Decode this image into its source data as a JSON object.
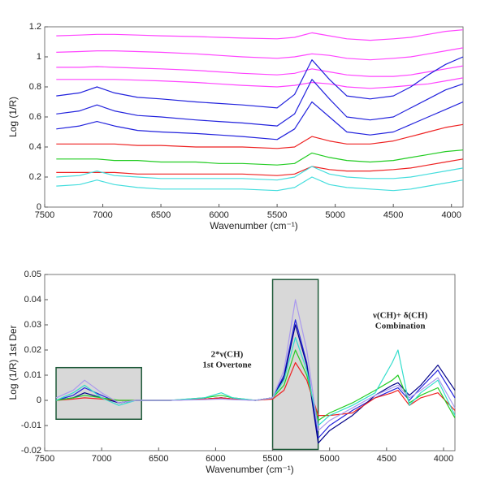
{
  "chart_data": [
    {
      "type": "line",
      "xlabel": "Wavenumber (cm⁻¹)",
      "ylabel": "Log (1/R)",
      "xlim": [
        7500,
        3900
      ],
      "xticks": [
        7500,
        7000,
        6500,
        6000,
        5500,
        5000,
        4500,
        4000
      ],
      "ylim": [
        0,
        1.2
      ],
      "yticks": [
        0,
        0.2,
        0.4,
        0.6,
        0.8,
        1,
        1.2
      ],
      "x": [
        7400,
        7200,
        7050,
        6900,
        6700,
        6500,
        6200,
        6000,
        5800,
        5500,
        5350,
        5200,
        5050,
        4900,
        4700,
        4500,
        4350,
        4200,
        4050,
        3900
      ],
      "series": [
        {
          "color": "#ff44ff",
          "values": [
            1.14,
            1.145,
            1.15,
            1.15,
            1.145,
            1.14,
            1.135,
            1.13,
            1.125,
            1.12,
            1.13,
            1.16,
            1.14,
            1.12,
            1.11,
            1.12,
            1.13,
            1.15,
            1.17,
            1.18
          ]
        },
        {
          "color": "#ff44ff",
          "values": [
            1.03,
            1.035,
            1.04,
            1.04,
            1.035,
            1.03,
            1.02,
            1.01,
            1.0,
            0.99,
            1.0,
            1.02,
            1.01,
            0.99,
            0.98,
            0.99,
            1.0,
            1.02,
            1.04,
            1.06
          ]
        },
        {
          "color": "#ff44ff",
          "values": [
            0.93,
            0.93,
            0.935,
            0.93,
            0.925,
            0.92,
            0.91,
            0.9,
            0.89,
            0.88,
            0.89,
            0.92,
            0.9,
            0.88,
            0.87,
            0.87,
            0.88,
            0.9,
            0.92,
            0.94
          ]
        },
        {
          "color": "#ff44ff",
          "values": [
            0.85,
            0.85,
            0.85,
            0.85,
            0.845,
            0.84,
            0.83,
            0.82,
            0.81,
            0.8,
            0.81,
            0.83,
            0.82,
            0.8,
            0.79,
            0.8,
            0.81,
            0.82,
            0.84,
            0.86
          ]
        },
        {
          "color": "#2222dd",
          "values": [
            0.74,
            0.76,
            0.8,
            0.76,
            0.73,
            0.72,
            0.7,
            0.69,
            0.68,
            0.66,
            0.75,
            0.98,
            0.85,
            0.74,
            0.72,
            0.74,
            0.8,
            0.88,
            0.95,
            1.0
          ]
        },
        {
          "color": "#2222dd",
          "values": [
            0.62,
            0.64,
            0.68,
            0.64,
            0.61,
            0.6,
            0.58,
            0.57,
            0.56,
            0.54,
            0.62,
            0.85,
            0.72,
            0.6,
            0.58,
            0.6,
            0.66,
            0.72,
            0.78,
            0.82
          ]
        },
        {
          "color": "#2222dd",
          "values": [
            0.52,
            0.54,
            0.57,
            0.54,
            0.51,
            0.5,
            0.49,
            0.48,
            0.47,
            0.45,
            0.52,
            0.7,
            0.6,
            0.5,
            0.48,
            0.5,
            0.55,
            0.6,
            0.65,
            0.7
          ]
        },
        {
          "color": "#ee2222",
          "values": [
            0.42,
            0.42,
            0.42,
            0.42,
            0.41,
            0.41,
            0.4,
            0.4,
            0.4,
            0.39,
            0.4,
            0.47,
            0.44,
            0.42,
            0.42,
            0.44,
            0.47,
            0.5,
            0.53,
            0.55
          ]
        },
        {
          "color": "#22cc22",
          "values": [
            0.32,
            0.32,
            0.32,
            0.31,
            0.31,
            0.3,
            0.3,
            0.29,
            0.29,
            0.28,
            0.29,
            0.36,
            0.33,
            0.31,
            0.3,
            0.31,
            0.33,
            0.35,
            0.37,
            0.38
          ]
        },
        {
          "color": "#ee2222",
          "values": [
            0.23,
            0.23,
            0.23,
            0.23,
            0.22,
            0.22,
            0.22,
            0.22,
            0.22,
            0.21,
            0.22,
            0.27,
            0.25,
            0.24,
            0.24,
            0.25,
            0.26,
            0.28,
            0.3,
            0.32
          ]
        },
        {
          "color": "#44dddd",
          "values": [
            0.2,
            0.21,
            0.24,
            0.21,
            0.2,
            0.19,
            0.19,
            0.19,
            0.19,
            0.18,
            0.2,
            0.27,
            0.22,
            0.2,
            0.19,
            0.19,
            0.2,
            0.22,
            0.24,
            0.26
          ]
        },
        {
          "color": "#44dddd",
          "values": [
            0.14,
            0.15,
            0.18,
            0.15,
            0.13,
            0.12,
            0.12,
            0.12,
            0.12,
            0.11,
            0.13,
            0.2,
            0.15,
            0.13,
            0.12,
            0.11,
            0.12,
            0.14,
            0.16,
            0.18
          ]
        }
      ]
    },
    {
      "type": "line",
      "xlabel": "Wavenumber (cm⁻¹)",
      "ylabel": "Log (1/R) 1st Der",
      "xlim": [
        7500,
        3900
      ],
      "xticks": [
        7500,
        7000,
        6500,
        6000,
        5500,
        5000,
        4500,
        4000
      ],
      "ylim": [
        -0.02,
        0.05
      ],
      "yticks": [
        -0.02,
        -0.01,
        0,
        0.01,
        0.02,
        0.03,
        0.04,
        0.05
      ],
      "highlight_regions": [
        {
          "x": [
            7400,
            6650
          ],
          "y": [
            -0.0075,
            0.013
          ]
        },
        {
          "x": [
            5500,
            5100
          ],
          "y": [
            -0.0195,
            0.048
          ]
        }
      ],
      "annotations": [
        {
          "lines": [
            "2*ν(CH)",
            "1st Overtone"
          ]
        },
        {
          "lines": [
            "ν(CH)+ δ(CH)",
            "Combination"
          ]
        }
      ],
      "x": [
        7400,
        7250,
        7150,
        7000,
        6850,
        6700,
        6400,
        6100,
        5950,
        5850,
        5650,
        5500,
        5400,
        5300,
        5200,
        5100,
        5000,
        4800,
        4600,
        4450,
        4400,
        4300,
        4200,
        4050,
        3900
      ],
      "series": [
        {
          "color": "#2222dd",
          "values": [
            0,
            0.002,
            0.005,
            0.002,
            -0.001,
            0,
            0,
            0.0005,
            0.001,
            0.0005,
            0,
            0.001,
            0.01,
            0.032,
            0.015,
            -0.015,
            -0.01,
            -0.004,
            0.001,
            0.004,
            0.005,
            0,
            0.005,
            0.012,
            0.001
          ]
        },
        {
          "color": "#000088",
          "values": [
            0,
            0.001,
            0.003,
            0.001,
            -0.001,
            0,
            0,
            0.0005,
            0.001,
            0.0005,
            0,
            0.001,
            0.009,
            0.03,
            0.014,
            -0.017,
            -0.012,
            -0.006,
            0.002,
            0.006,
            0.007,
            0.002,
            0.006,
            0.014,
            0.004
          ]
        },
        {
          "color": "#ee2222",
          "values": [
            0,
            0.0005,
            0.001,
            0.0005,
            0,
            0,
            0,
            0.0005,
            0.001,
            0.0005,
            0,
            0.0005,
            0.004,
            0.015,
            0.008,
            -0.006,
            -0.006,
            -0.005,
            0.001,
            0.003,
            0.004,
            -0.002,
            0.001,
            0.003,
            -0.004
          ]
        },
        {
          "color": "#22cc22",
          "values": [
            0,
            0.001,
            0.002,
            0.001,
            0,
            0,
            0,
            0.001,
            0.002,
            0.001,
            0,
            0.001,
            0.006,
            0.02,
            0.01,
            -0.008,
            -0.005,
            -0.001,
            0.004,
            0.008,
            0.01,
            -0.001,
            0.002,
            0.005,
            -0.007
          ]
        },
        {
          "color": "#33ddcc",
          "values": [
            0,
            0.003,
            0.006,
            0.001,
            -0.002,
            0,
            0,
            0.001,
            0.003,
            0.001,
            0,
            0.001,
            0.008,
            0.025,
            0.012,
            -0.01,
            -0.006,
            -0.002,
            0.003,
            0.015,
            0.02,
            -0.002,
            0.003,
            0.008,
            -0.006
          ]
        },
        {
          "color": "#aa99ee",
          "values": [
            0.001,
            0.004,
            0.008,
            0.003,
            -0.001,
            0,
            0,
            0.0003,
            0.0005,
            0.0003,
            0,
            0.001,
            0.012,
            0.04,
            0.02,
            -0.012,
            -0.008,
            -0.003,
            0.002,
            0.005,
            0.006,
            0.001,
            0.004,
            0.009,
            -0.003
          ]
        }
      ]
    }
  ]
}
